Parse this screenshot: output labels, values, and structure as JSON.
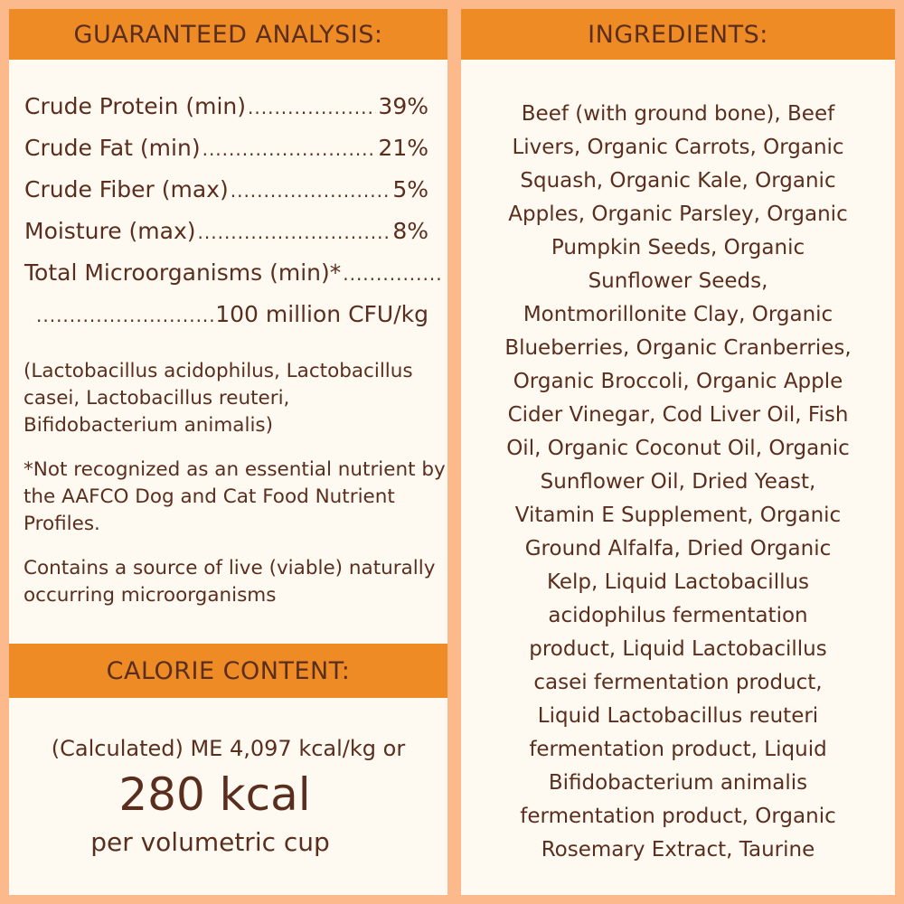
{
  "guaranteed_analysis": {
    "title": "GUARANTEED ANALYSIS:",
    "rows": [
      {
        "label": "Crude Protein (min)",
        "value": "39%"
      },
      {
        "label": "Crude Fat (min)",
        "value": "21%"
      },
      {
        "label": "Crude Fiber (max)",
        "value": "5%"
      },
      {
        "label": "Moisture (max)",
        "value": "8%"
      },
      {
        "label": "Total Microorganisms (min)*",
        "value": ""
      },
      {
        "label": "",
        "value": "100 million CFU/kg"
      }
    ],
    "strains": "(Lactobacillus acidophilus, Lactobacillus casei, Lactobacillus reuteri, Bifidobacterium animalis)",
    "footnote": "*Not recognized as an essential nutrient by the AAFCO Dog and Cat Food Nutrient Profiles.",
    "live_note": "Contains a source of live (viable) naturally occurring microorganisms"
  },
  "calorie_content": {
    "title": "CALORIE CONTENT:",
    "line1": "(Calculated) ME 4,097 kcal/kg or",
    "big": "280 kcal",
    "line3": "per volumetric cup"
  },
  "ingredients": {
    "title": "INGREDIENTS:",
    "lines": [
      "Beef (with ground bone), Beef",
      "Livers, Organic Carrots, Organic",
      "Squash, Organic Kale, Organic",
      "Apples, Organic Parsley, Organic",
      "Pumpkin Seeds, Organic",
      "Sunflower Seeds,",
      "Montmorillonite Clay, Organic",
      "Blueberries, Organic Cranberries,",
      "Organic Broccoli, Organic Apple",
      "Cider Vinegar, Cod Liver Oil, Fish",
      "Oil, Organic Coconut Oil, Organic",
      "Sunflower Oil, Dried Yeast,",
      "Vitamin E Supplement, Organic",
      "Ground Alfalfa, Dried Organic",
      "Kelp, Liquid Lactobacillus",
      "acidophilus fermentation",
      "product, Liquid Lactobacillus",
      "casei fermentation product,",
      "Liquid Lactobacillus reuteri",
      "fermentation product, Liquid",
      "Bifidobacterium animalis",
      "fermentation product, Organic",
      "Rosemary Extract, Taurine"
    ]
  },
  "colors": {
    "border": "#fbb98c",
    "header": "#ef8b25",
    "panel": "#fffaf1",
    "text": "#5a2e1f"
  }
}
